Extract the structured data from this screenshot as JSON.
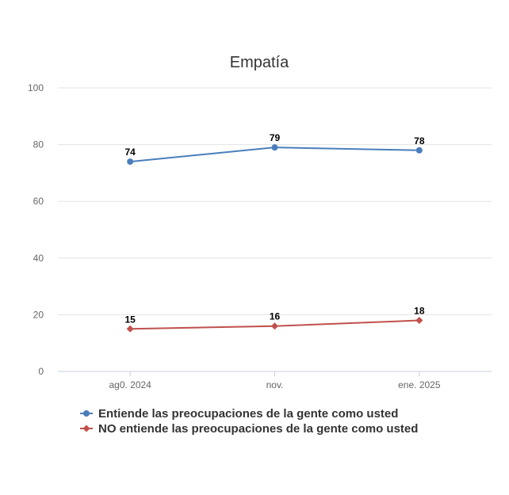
{
  "chart_data": {
    "type": "line",
    "title": "Empatía",
    "xlabel": "",
    "ylabel": "",
    "categories": [
      "ag0. 2024",
      "nov.",
      "ene. 2025"
    ],
    "ylim": [
      0,
      100
    ],
    "yticks": [
      0,
      20,
      40,
      60,
      80,
      100
    ],
    "grid": true,
    "legend_position": "bottom-left",
    "series": [
      {
        "name": "Entiende las preocupaciones de la gente como usted",
        "values": [
          74,
          79,
          78
        ],
        "color": "#4a7ebb",
        "marker": "circle"
      },
      {
        "name": "NO entiende las preocupaciones de la gente como usted",
        "values": [
          15,
          16,
          18
        ],
        "color": "#c0504d",
        "marker": "diamond"
      }
    ]
  }
}
